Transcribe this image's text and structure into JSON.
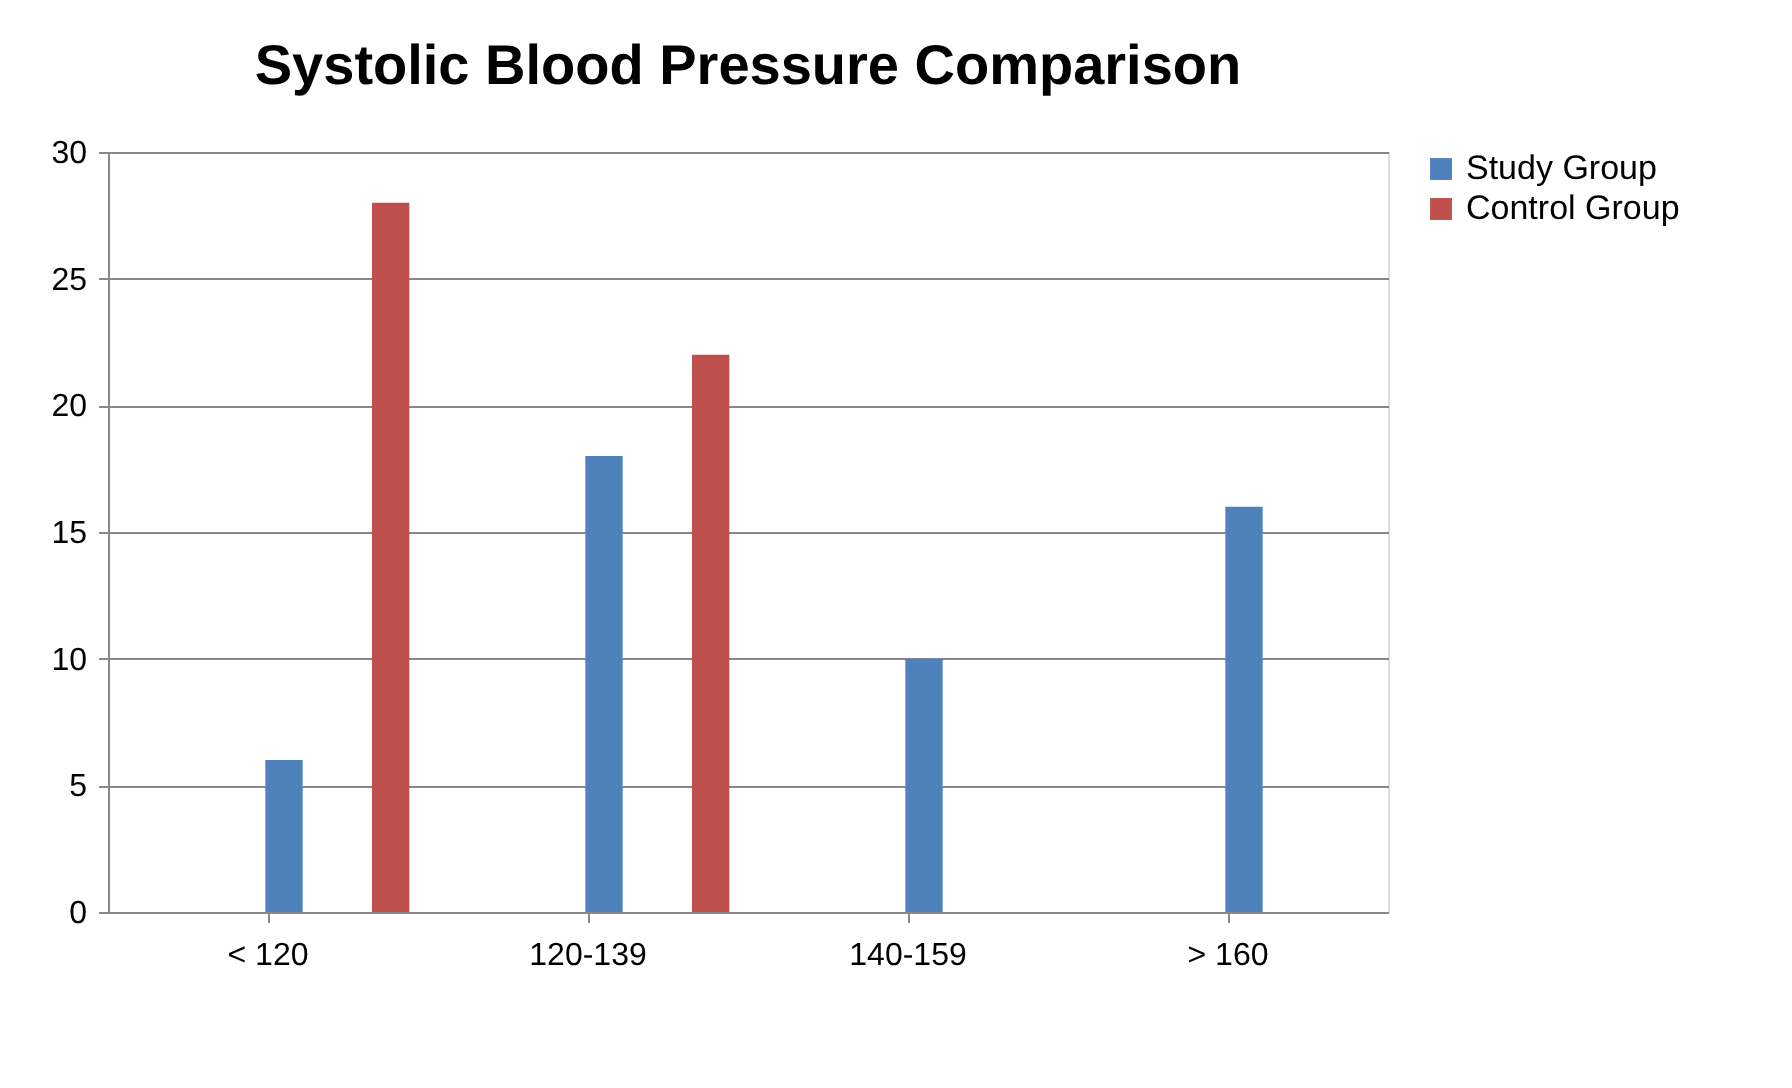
{
  "chart_data": {
    "type": "bar",
    "title": "Systolic Blood Pressure Comparison",
    "categories": [
      "< 120",
      "120-139",
      "140-159",
      "> 160"
    ],
    "series": [
      {
        "name": "Study Group",
        "color": "#4f81bd",
        "values": [
          6,
          18,
          10,
          16
        ]
      },
      {
        "name": "Control Group",
        "color": "#c0504d",
        "values": [
          28,
          22,
          0,
          0
        ]
      }
    ],
    "ylim": [
      0,
      30
    ],
    "yticks": [
      0,
      5,
      10,
      15,
      20,
      25,
      30
    ],
    "grid": "y",
    "legend": "right"
  }
}
